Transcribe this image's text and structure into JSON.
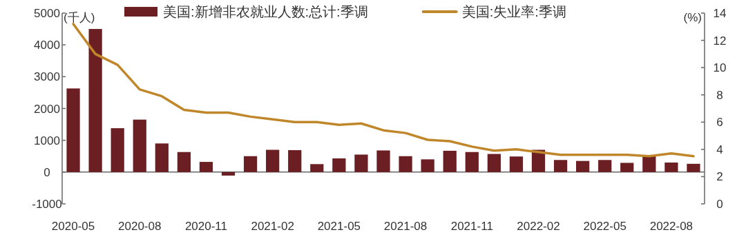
{
  "chart_data": {
    "type": "bar",
    "ylabel": "(千人)",
    "y2label": "(%)",
    "legend": "top",
    "categories": [
      "2020-05",
      null,
      null,
      "2020-08",
      null,
      null,
      "2020-11",
      null,
      null,
      "2021-02",
      null,
      null,
      "2021-05",
      null,
      null,
      "2021-08",
      null,
      null,
      "2021-11",
      null,
      null,
      "2022-02",
      null,
      null,
      "2022-05",
      null,
      null,
      "2022-08",
      null
    ],
    "series": [
      {
        "name": "美国:新增非农就业人数:总计:季调",
        "color": "#6b1f22",
        "values": [
          2630,
          4500,
          1380,
          1650,
          900,
          630,
          320,
          -110,
          500,
          700,
          690,
          250,
          430,
          550,
          680,
          500,
          400,
          670,
          630,
          570,
          490,
          700,
          380,
          350,
          380,
          290,
          520,
          300,
          260
        ]
      },
      {
        "name": "美国:失业率:季调",
        "type": "line",
        "axis": "y2",
        "color": "#c0862a",
        "values": [
          13.2,
          11.0,
          10.2,
          8.4,
          7.9,
          6.9,
          6.7,
          6.7,
          6.4,
          6.2,
          6.0,
          6.0,
          5.8,
          5.9,
          5.4,
          5.2,
          4.7,
          4.6,
          4.2,
          3.9,
          4.0,
          3.8,
          3.6,
          3.6,
          3.6,
          3.6,
          3.5,
          3.7,
          3.5
        ]
      }
    ],
    "ylim": [
      -1000,
      5000
    ],
    "yticks": [
      -1000,
      0,
      1000,
      2000,
      3000,
      4000,
      5000
    ],
    "y2lim": [
      0,
      14
    ],
    "y2ticks": [
      0,
      2,
      4,
      6,
      8,
      10,
      12,
      14
    ]
  }
}
